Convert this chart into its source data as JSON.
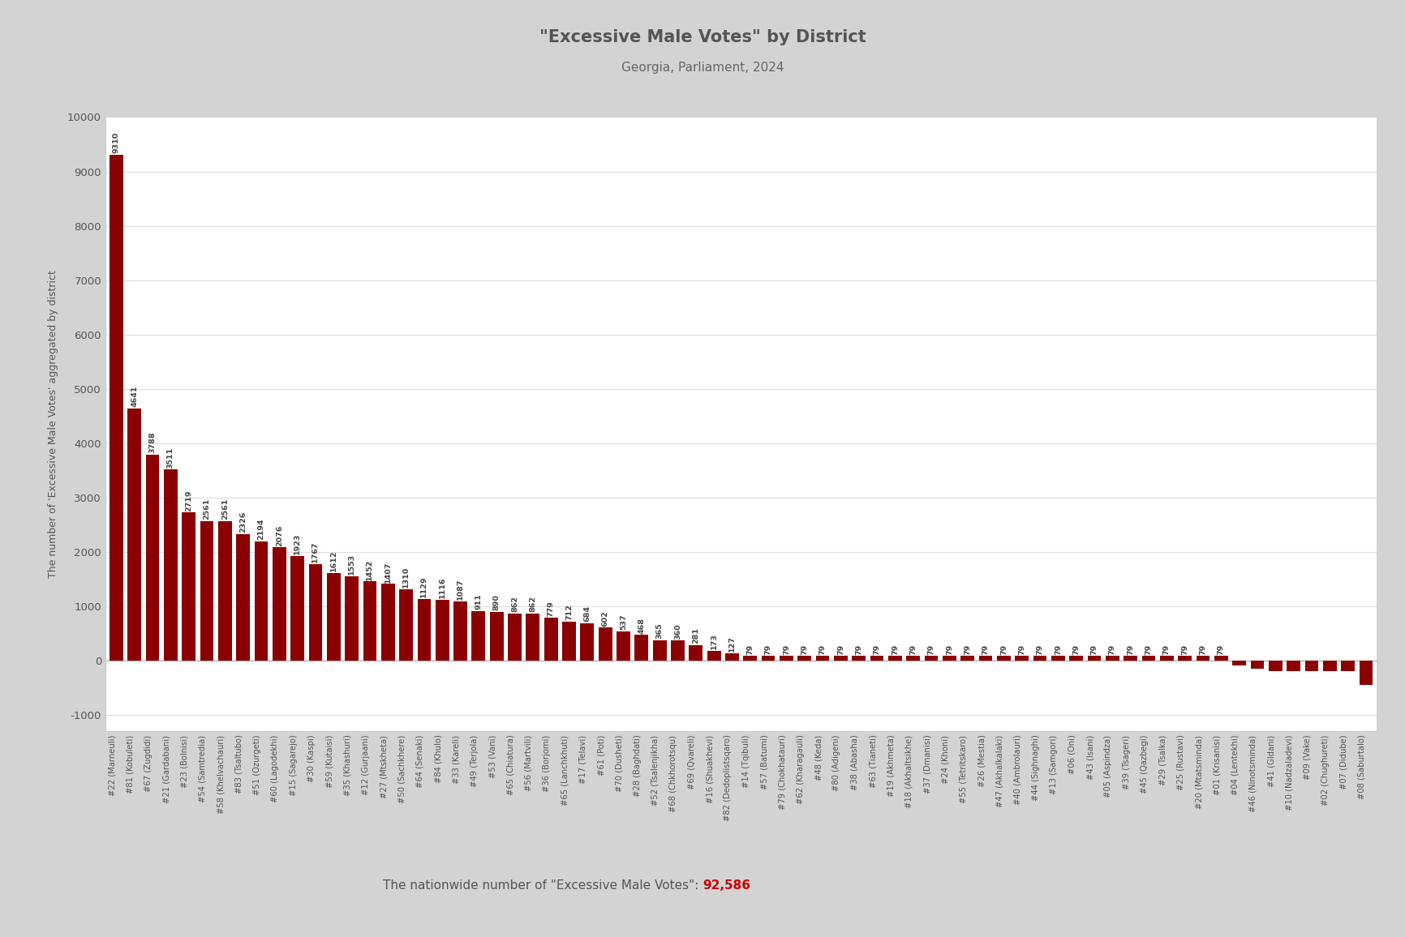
{
  "title": "\"Excessive Male Votes\" by District",
  "subtitle": "Georgia, Parliament, 2024",
  "ylabel": "The number of 'Excessive Male Votes' aggregated by district",
  "footer_text": "The nationwide number of \"Excessive Male Votes\": ",
  "footer_value": "92,586",
  "bar_color": "#8B0000",
  "background_color": "#D3D3D3",
  "plot_bg_color": "#FFFFFF",
  "ylim_min": -1300,
  "ylim_max": 10000,
  "yticks": [
    -1000,
    0,
    1000,
    2000,
    3000,
    4000,
    5000,
    6000,
    7000,
    8000,
    9000,
    10000
  ],
  "districts": [
    {
      "label": "#22 (Marneuli)",
      "value": 9310
    },
    {
      "label": "#81 (Kobuleti)",
      "value": 4641
    },
    {
      "label": "#67 (Zugdidi)",
      "value": 3788
    },
    {
      "label": "#21 (Gardabani)",
      "value": 3511
    },
    {
      "label": "#23 (Bolnisi)",
      "value": 2719
    },
    {
      "label": "#54 (Samtredia)",
      "value": 2561
    },
    {
      "label": "#58 (Khelvachauri)",
      "value": 2561
    },
    {
      "label": "#83 (Tsaltubo)",
      "value": 2326
    },
    {
      "label": "#51 (Ozurgeti)",
      "value": 2194
    },
    {
      "label": "#60 (Lagodekhi)",
      "value": 2076
    },
    {
      "label": "#15 (Sagarejo)",
      "value": 1923
    },
    {
      "label": "#30 (Kaspi)",
      "value": 1767
    },
    {
      "label": "#59 (Kutaisi)",
      "value": 1612
    },
    {
      "label": "#35 (Khashuri)",
      "value": 1553
    },
    {
      "label": "#12 (Gurjaani)",
      "value": 1452
    },
    {
      "label": "#27 (Mtskheta)",
      "value": 1407
    },
    {
      "label": "#50 (Sachkhere)",
      "value": 1310
    },
    {
      "label": "#64 (Senaki)",
      "value": 1129
    },
    {
      "label": "#84 (Khulo)",
      "value": 1116
    },
    {
      "label": "#33 (Kareli)",
      "value": 1087
    },
    {
      "label": "#49 (Terjola)",
      "value": 911
    },
    {
      "label": "#53 (Vani)",
      "value": 890
    },
    {
      "label": "#65 (Chiatura)",
      "value": 862
    },
    {
      "label": "#56 (Martvili)",
      "value": 862
    },
    {
      "label": "#36 (Borjomi)",
      "value": 779
    },
    {
      "label": "#65 (Lanchkhuti)",
      "value": 712
    },
    {
      "label": "#17 (Telavi)",
      "value": 684
    },
    {
      "label": "#61 (Poti)",
      "value": 602
    },
    {
      "label": "#70 (Dusheti)",
      "value": 537
    },
    {
      "label": "#28 (Baghdati)",
      "value": 468
    },
    {
      "label": "#52 (Tsalenjikha)",
      "value": 365
    },
    {
      "label": "#68 (Chkhorotsqu)",
      "value": 360
    },
    {
      "label": "#69 (Qvareli)",
      "value": 281
    },
    {
      "label": "#16 (Shuakhevi)",
      "value": 173
    },
    {
      "label": "#82 (Dedoplistsqaro)",
      "value": 127
    },
    {
      "label": "#14 (Tqibuli)",
      "value": 79
    },
    {
      "label": "#57 (Batumi)",
      "value": 79
    },
    {
      "label": "#79 (Chokhatauri)",
      "value": 79
    },
    {
      "label": "#62 (Kharagauli)",
      "value": 79
    },
    {
      "label": "#48 (Keda)",
      "value": 79
    },
    {
      "label": "#80 (Adigeni)",
      "value": 79
    },
    {
      "label": "#38 (Abasha)",
      "value": 79
    },
    {
      "label": "#63 (Tianeti)",
      "value": 79
    },
    {
      "label": "#19 (Akhmeta)",
      "value": 79
    },
    {
      "label": "#18 (Akhaltsikhe)",
      "value": 79
    },
    {
      "label": "#37 (Dmanisi)",
      "value": 79
    },
    {
      "label": "#24 (Khoni)",
      "value": 79
    },
    {
      "label": "#55 (Tetritskaro)",
      "value": 79
    },
    {
      "label": "#26 (Mestia)",
      "value": 79
    },
    {
      "label": "#47 (Akhalkalaki)",
      "value": 79
    },
    {
      "label": "#40 (Ambrolauri)",
      "value": 79
    },
    {
      "label": "#44 (Sighnaghi)",
      "value": 79
    },
    {
      "label": "#13 (Samgori)",
      "value": 79
    },
    {
      "label": "#06 (Oni)",
      "value": 79
    },
    {
      "label": "#43 (Isani)",
      "value": 79
    },
    {
      "label": "#05 (Aspindza)",
      "value": 79
    },
    {
      "label": "#39 (Tsageri)",
      "value": 79
    },
    {
      "label": "#45 (Qazbegi)",
      "value": 79
    },
    {
      "label": "#29 (Tsalka)",
      "value": 79
    },
    {
      "label": "#25 (Rustavi)",
      "value": 79
    },
    {
      "label": "#20 (Mtatsminda)",
      "value": 79
    },
    {
      "label": "#01 (Krisanisi)",
      "value": 79
    },
    {
      "label": "#04 (Lentekhi)",
      "value": -100
    },
    {
      "label": "#46 (Ninotsminda)",
      "value": -150
    },
    {
      "label": "#41 (Gldani)",
      "value": -200
    },
    {
      "label": "#10 (Nadzaladevi)",
      "value": -200
    },
    {
      "label": "#09 (Vake)",
      "value": -200
    },
    {
      "label": "#02 (Chughureti)",
      "value": -200
    },
    {
      "label": "#07 (Didube)",
      "value": -200
    },
    {
      "label": "#08 (Saburtalo)",
      "value": -450
    }
  ]
}
